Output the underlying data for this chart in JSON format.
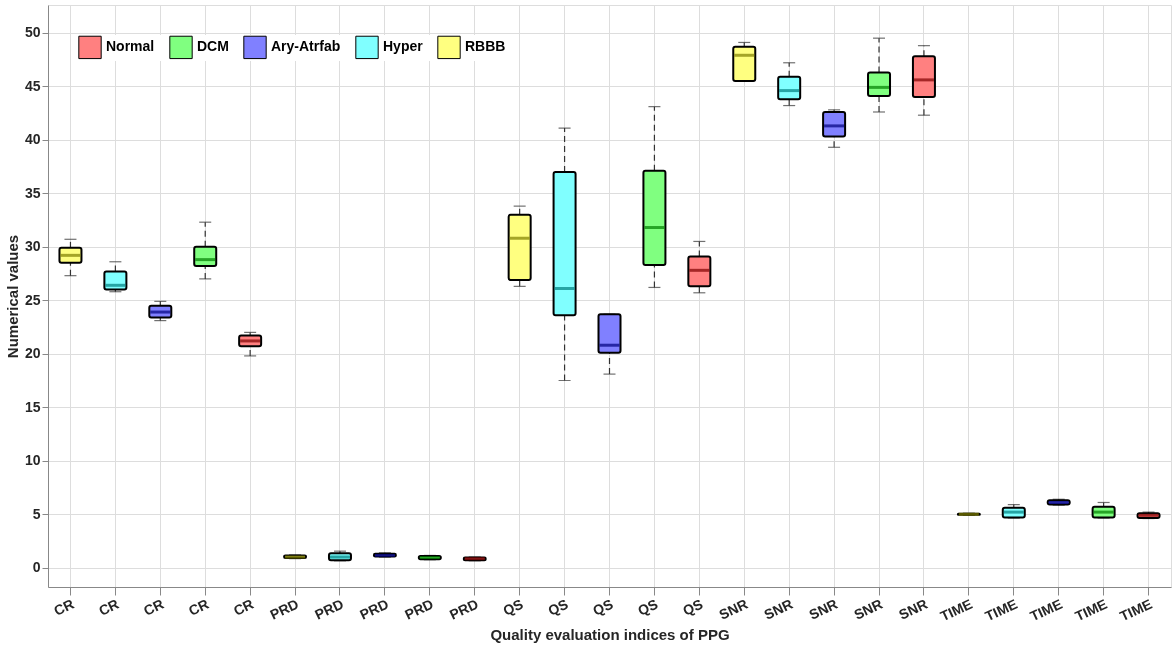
{
  "chart_data": {
    "type": "box",
    "xlabel": "Quality evaluation indices of PPG",
    "ylabel": "Numerical values",
    "categories": [
      "CR",
      "CR",
      "CR",
      "CR",
      "CR",
      "PRD",
      "PRD",
      "PRD",
      "PRD",
      "PRD",
      "QS",
      "QS",
      "QS",
      "QS",
      "QS",
      "SNR",
      "SNR",
      "SNR",
      "SNR",
      "SNR",
      "TIME",
      "TIME",
      "TIME",
      "TIME",
      "TIME"
    ],
    "ylim": [
      -1.8,
      52.6
    ],
    "yticks": [
      0,
      5,
      10,
      15,
      20,
      25,
      30,
      35,
      40,
      45,
      50
    ],
    "grid": true,
    "legend": "top left",
    "line_style": "dashed",
    "series": [
      {
        "name": "Normal",
        "color": "#ff8080",
        "boxes": [
          null,
          null,
          null,
          null,
          {
            "low": 19.8,
            "q1": 20.7,
            "median": 21.2,
            "q3": 21.7,
            "high": 22.0
          },
          null,
          null,
          null,
          null,
          {
            "low": 0.65,
            "q1": 0.7,
            "median": 0.85,
            "q3": 0.95,
            "high": 1.0
          },
          null,
          null,
          null,
          null,
          {
            "low": 25.7,
            "q1": 26.3,
            "median": 27.8,
            "q3": 29.1,
            "high": 30.5
          },
          null,
          null,
          null,
          null,
          {
            "low": 42.3,
            "q1": 44.0,
            "median": 45.6,
            "q3": 47.8,
            "high": 48.8
          },
          null,
          null,
          null,
          null,
          {
            "low": 4.6,
            "q1": 4.65,
            "median": 4.9,
            "q3": 5.1,
            "high": 5.2
          }
        ]
      },
      {
        "name": "DCM",
        "color": "#80ff80",
        "boxes": [
          null,
          null,
          null,
          {
            "low": 27.0,
            "q1": 28.2,
            "median": 28.8,
            "q3": 30.0,
            "high": 32.3
          },
          null,
          null,
          null,
          null,
          {
            "low": 0.75,
            "q1": 0.8,
            "median": 0.95,
            "q3": 1.1,
            "high": 1.15
          },
          null,
          null,
          null,
          null,
          {
            "low": 26.2,
            "q1": 28.3,
            "median": 31.8,
            "q3": 37.1,
            "high": 43.1
          },
          null,
          null,
          null,
          null,
          {
            "low": 42.6,
            "q1": 44.1,
            "median": 44.9,
            "q3": 46.3,
            "high": 49.5
          },
          null,
          null,
          null,
          null,
          {
            "low": 4.65,
            "q1": 4.7,
            "median": 5.2,
            "q3": 5.7,
            "high": 6.1
          },
          null
        ]
      },
      {
        "name": "Ary-Atrfab",
        "color": "#8080ff",
        "boxes": [
          null,
          null,
          {
            "low": 23.1,
            "q1": 23.4,
            "median": 23.9,
            "q3": 24.5,
            "high": 24.9
          },
          null,
          null,
          null,
          null,
          {
            "low": 1.0,
            "q1": 1.05,
            "median": 1.15,
            "q3": 1.3,
            "high": 1.4
          },
          null,
          null,
          null,
          null,
          {
            "low": 18.1,
            "q1": 20.1,
            "median": 20.8,
            "q3": 23.7,
            "high": 23.7
          },
          null,
          null,
          null,
          null,
          {
            "low": 39.3,
            "q1": 40.3,
            "median": 41.3,
            "q3": 42.6,
            "high": 42.8
          },
          null,
          null,
          null,
          null,
          {
            "low": 5.85,
            "q1": 5.9,
            "median": 6.1,
            "q3": 6.3,
            "high": 6.4
          },
          null,
          null
        ]
      },
      {
        "name": "Hyper",
        "color": "#80ffff",
        "boxes": [
          null,
          {
            "low": 25.8,
            "q1": 26.0,
            "median": 26.4,
            "q3": 27.7,
            "high": 28.6
          },
          null,
          null,
          null,
          null,
          {
            "low": 0.65,
            "q1": 0.7,
            "median": 1.0,
            "q3": 1.35,
            "high": 1.55
          },
          null,
          null,
          null,
          null,
          {
            "low": 17.5,
            "q1": 23.6,
            "median": 26.1,
            "q3": 37.0,
            "high": 41.1
          },
          null,
          null,
          null,
          null,
          {
            "low": 43.2,
            "q1": 43.8,
            "median": 44.6,
            "q3": 45.9,
            "high": 47.2
          },
          null,
          null,
          null,
          null,
          {
            "low": 4.65,
            "q1": 4.7,
            "median": 5.2,
            "q3": 5.6,
            "high": 5.9
          },
          null,
          null,
          null
        ]
      },
      {
        "name": "RBBB",
        "color": "#ffff80",
        "boxes": [
          {
            "low": 27.3,
            "q1": 28.5,
            "median": 29.2,
            "q3": 29.9,
            "high": 30.7
          },
          null,
          null,
          null,
          null,
          {
            "low": 0.85,
            "q1": 0.9,
            "median": 1.0,
            "q3": 1.15,
            "high": 1.2
          },
          null,
          null,
          null,
          null,
          {
            "low": 26.3,
            "q1": 26.9,
            "median": 30.8,
            "q3": 33.0,
            "high": 33.8
          },
          null,
          null,
          null,
          null,
          {
            "low": 45.5,
            "q1": 45.5,
            "median": 47.9,
            "q3": 48.7,
            "high": 49.1
          },
          null,
          null,
          null,
          null,
          {
            "low": 4.9,
            "q1": 4.95,
            "median": 5.0,
            "q3": 5.05,
            "high": 5.1
          },
          null,
          null,
          null,
          null
        ]
      }
    ]
  }
}
